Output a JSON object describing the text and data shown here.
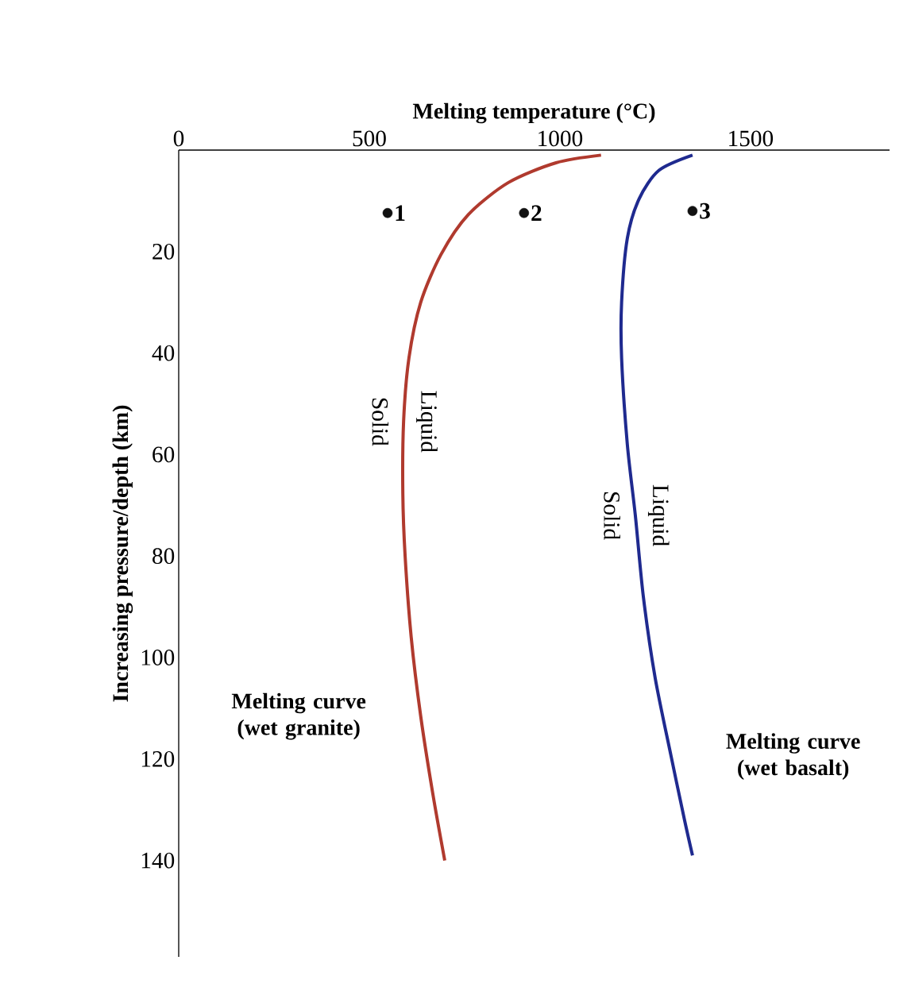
{
  "chart_data": {
    "type": "line",
    "xlabel": "Melting temperature (°C)",
    "ylabel": "Increasing pressure/depth (km)",
    "xlim": [
      0,
      1865
    ],
    "ylim": [
      159,
      0
    ],
    "xticks": [
      0,
      500,
      1000,
      1500
    ],
    "yticks": [
      20,
      40,
      60,
      80,
      100,
      120,
      140
    ],
    "series": [
      {
        "name": "Melting curve (wet granite)",
        "color": "#b03a2e",
        "x": [
          1108,
          990,
          865,
          760,
          688,
          635,
          604,
          590,
          588,
          594,
          610,
          635,
          667,
          698
        ],
        "values": [
          1,
          2.5,
          6.4,
          12.7,
          20.6,
          30,
          41,
          53.5,
          67.7,
          80,
          96,
          111.6,
          127,
          140
        ]
      },
      {
        "name": "Melting curve (wet basalt)",
        "color": "#1f2a8f",
        "x": [
          1348,
          1260,
          1208,
          1177,
          1162,
          1162,
          1177,
          1198,
          1219,
          1250,
          1292,
          1327,
          1348
        ],
        "values": [
          1,
          4,
          9.6,
          17.4,
          30,
          41,
          58,
          72,
          88,
          104,
          119.5,
          132,
          139
        ]
      },
      {
        "type": "scatter",
        "marker": "circle",
        "color": "#111111",
        "x": [
          548,
          906,
          1348
        ],
        "values": [
          12.4,
          12.4,
          12
        ]
      }
    ],
    "annotations": [
      "Solid",
      "Liquid",
      "Solid",
      "Liquid",
      {
        "text": "1",
        "x": 548,
        "y": 12.4
      },
      {
        "text": "2",
        "x": 906,
        "y": 12.4
      },
      {
        "text": "3",
        "x": 1348,
        "y": 12
      }
    ]
  }
}
